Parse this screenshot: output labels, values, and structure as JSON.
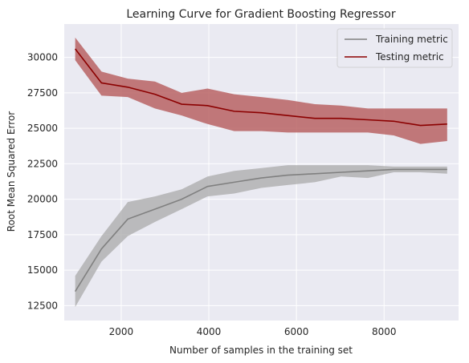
{
  "chart_data": {
    "type": "line",
    "title": "Learning Curve for Gradient Boosting Regressor",
    "xlabel": "Number of samples in the training set",
    "ylabel": "Root Mean Squared Error",
    "xlim": [
      700,
      9700
    ],
    "ylim": [
      11450,
      32350
    ],
    "xticks": [
      2000,
      4000,
      6000,
      8000
    ],
    "yticks": [
      12500,
      15000,
      17500,
      20000,
      22500,
      25000,
      27500,
      30000
    ],
    "xtick_labels": [
      "2000",
      "4000",
      "6000",
      "8000"
    ],
    "ytick_labels": [
      "12500",
      "15000",
      "17500",
      "20000",
      "22500",
      "25000",
      "27500",
      "30000"
    ],
    "grid": true,
    "legend_position": "top-right",
    "x": [
      950,
      1550,
      2150,
      2770,
      3380,
      3970,
      4580,
      5200,
      5800,
      6420,
      7020,
      7630,
      8220,
      8830,
      9440
    ],
    "series": [
      {
        "name": "Training metric",
        "color": "#808080",
        "band_color": "#a9a9a9",
        "values": [
          13500,
          16500,
          18600,
          19300,
          20000,
          20900,
          21200,
          21500,
          21700,
          21800,
          21900,
          22000,
          22100,
          22100,
          22100
        ],
        "lower": [
          12400,
          15600,
          17400,
          18400,
          19300,
          20200,
          20400,
          20800,
          21000,
          21200,
          21600,
          21500,
          21900,
          21900,
          21800
        ],
        "upper": [
          14600,
          17400,
          19800,
          20200,
          20700,
          21600,
          22000,
          22200,
          22400,
          22400,
          22400,
          22400,
          22300,
          22300,
          22300
        ]
      },
      {
        "name": "Testing metric",
        "color": "#8b0000",
        "band_color": "#b55a5a",
        "values": [
          30600,
          28200,
          27900,
          27400,
          26700,
          26600,
          26200,
          26100,
          25900,
          25700,
          25700,
          25600,
          25500,
          25200,
          25300
        ],
        "lower": [
          29800,
          27300,
          27200,
          26400,
          25900,
          25300,
          24800,
          24800,
          24700,
          24700,
          24700,
          24700,
          24500,
          23900,
          24100
        ],
        "upper": [
          31400,
          29000,
          28500,
          28300,
          27500,
          27800,
          27400,
          27200,
          27000,
          26700,
          26600,
          26400,
          26400,
          26400,
          26400
        ]
      }
    ]
  }
}
